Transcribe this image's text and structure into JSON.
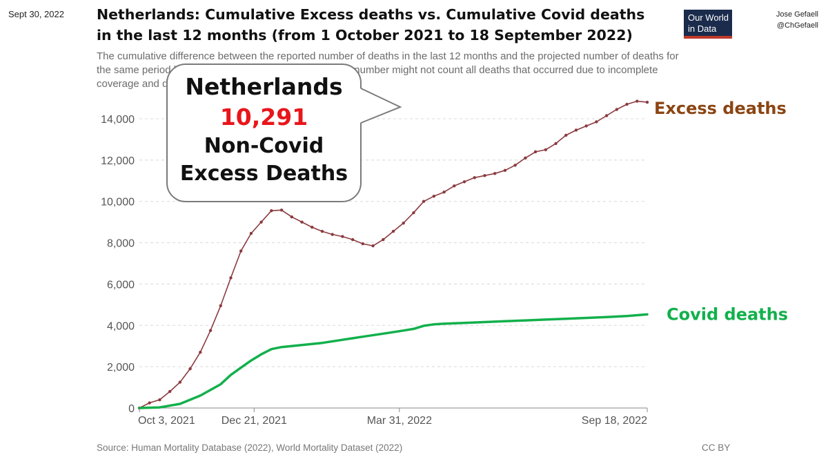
{
  "header": {
    "date": "Sept 30, 2022",
    "title_line1": "Netherlands: Cumulative Excess deaths vs. Cumulative Covid deaths",
    "title_line2": "in the last 12 months (from 1 October 2021 to 18 September 2022)",
    "logo_line1": "Our World",
    "logo_line2": "in Data",
    "author_name": "Jose Gefaell",
    "author_handle": "@ChGefaell"
  },
  "subtitle": {
    "line1": "The cumulative difference between the reported number of deaths in the last 12 months and the projected number of deaths for",
    "line2": "the same period based on previous years. The reported number might not count all deaths that occurred due to incomplete",
    "line3": "coverage and delays in reporting."
  },
  "callout": {
    "country": "Netherlands",
    "value": "10,291",
    "line3": "Non-Covid",
    "line4": "Excess Deaths"
  },
  "footer": {
    "source": "Source: Human Mortality Database (2022), World Mortality Dataset (2022)",
    "license": "CC BY"
  },
  "chart_data": {
    "type": "line",
    "title": "Netherlands: Cumulative Excess deaths vs. Cumulative Covid deaths in the last 12 months (from 1 October 2021 to 18 September 2022)",
    "xlabel": "",
    "ylabel": "",
    "ylim": [
      0,
      14000
    ],
    "yticks": [
      0,
      2000,
      4000,
      6000,
      8000,
      10000,
      12000,
      14000
    ],
    "ytick_labels": [
      "0",
      "2,000",
      "4,000",
      "6,000",
      "8,000",
      "10,000",
      "12,000",
      "14,000"
    ],
    "x_tick_labels": [
      {
        "label": "Oct 3, 2021",
        "week": 0
      },
      {
        "label": "Dec 21, 2021",
        "week": 11.3
      },
      {
        "label": "Mar 31, 2022",
        "week": 25.6
      },
      {
        "label": "Sep 18, 2022",
        "week": 50
      }
    ],
    "grid": true,
    "series": [
      {
        "name": "Excess deaths",
        "color": "#8b3a3f",
        "label_color": "#8b4513",
        "markers": true,
        "x": [
          0,
          1,
          2,
          3,
          4,
          5,
          6,
          7,
          8,
          9,
          10,
          11,
          12,
          13,
          14,
          15,
          16,
          17,
          18,
          19,
          20,
          21,
          22,
          23,
          24,
          25,
          26,
          27,
          28,
          29,
          30,
          31,
          32,
          33,
          34,
          35,
          36,
          37,
          38,
          39,
          40,
          41,
          42,
          43,
          44,
          45,
          46,
          47,
          48,
          49,
          50
        ],
        "values": [
          0,
          250,
          400,
          800,
          1250,
          1900,
          2700,
          3750,
          4950,
          6300,
          7600,
          8450,
          9000,
          9550,
          9580,
          9250,
          9000,
          8750,
          8550,
          8400,
          8300,
          8150,
          7950,
          7850,
          8150,
          8550,
          8950,
          9450,
          10000,
          10250,
          10450,
          10750,
          10950,
          11150,
          11250,
          11350,
          11500,
          11750,
          12100,
          12400,
          12500,
          12800,
          13200,
          13450,
          13650,
          13850,
          14150,
          14450,
          14700,
          14850,
          14800
        ]
      },
      {
        "name": "Covid deaths",
        "color": "#12b04c",
        "label_color": "#12b04c",
        "markers": false,
        "x": [
          0,
          2,
          4,
          6,
          8,
          9,
          10,
          11,
          12,
          13,
          14,
          16,
          18,
          20,
          22,
          24,
          26,
          27,
          28,
          29,
          30,
          32,
          34,
          36,
          38,
          40,
          42,
          44,
          46,
          48,
          50
        ],
        "values": [
          0,
          30,
          200,
          600,
          1150,
          1600,
          1950,
          2300,
          2600,
          2850,
          2950,
          3050,
          3150,
          3300,
          3450,
          3600,
          3750,
          3830,
          3980,
          4050,
          4080,
          4120,
          4160,
          4200,
          4240,
          4280,
          4320,
          4360,
          4400,
          4450,
          4530
        ]
      }
    ]
  }
}
